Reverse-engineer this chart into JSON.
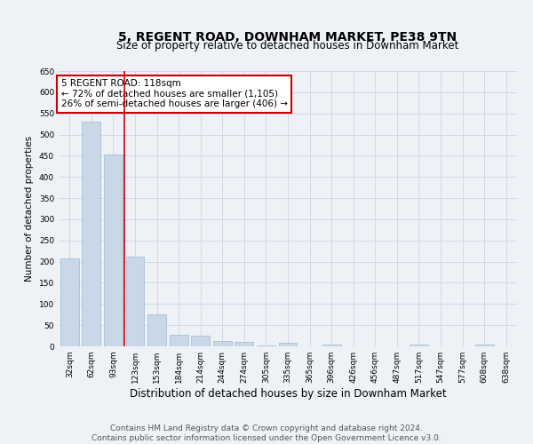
{
  "title": "5, REGENT ROAD, DOWNHAM MARKET, PE38 9TN",
  "subtitle": "Size of property relative to detached houses in Downham Market",
  "xlabel": "Distribution of detached houses by size in Downham Market",
  "ylabel": "Number of detached properties",
  "categories": [
    "32sqm",
    "62sqm",
    "93sqm",
    "123sqm",
    "153sqm",
    "184sqm",
    "214sqm",
    "244sqm",
    "274sqm",
    "305sqm",
    "335sqm",
    "365sqm",
    "396sqm",
    "426sqm",
    "456sqm",
    "487sqm",
    "517sqm",
    "547sqm",
    "577sqm",
    "608sqm",
    "638sqm"
  ],
  "values": [
    207,
    530,
    452,
    212,
    75,
    27,
    26,
    13,
    10,
    3,
    8,
    0,
    5,
    0,
    0,
    0,
    5,
    0,
    0,
    5,
    0
  ],
  "bar_color": "#c8d8e8",
  "bar_edge_color": "#a0b8d0",
  "grid_color": "#d0d8e8",
  "background_color": "#eef2f7",
  "annotation_box_text": "5 REGENT ROAD: 118sqm\n← 72% of detached houses are smaller (1,105)\n26% of semi-detached houses are larger (406) →",
  "annotation_box_color": "#ffffff",
  "annotation_box_edge_color": "#cc0000",
  "red_line_x": 2.5,
  "ylim": [
    0,
    650
  ],
  "yticks": [
    0,
    50,
    100,
    150,
    200,
    250,
    300,
    350,
    400,
    450,
    500,
    550,
    600,
    650
  ],
  "footer_line1": "Contains HM Land Registry data © Crown copyright and database right 2024.",
  "footer_line2": "Contains public sector information licensed under the Open Government Licence v3.0.",
  "title_fontsize": 10,
  "subtitle_fontsize": 8.5,
  "xlabel_fontsize": 8.5,
  "ylabel_fontsize": 7.5,
  "tick_fontsize": 6.5,
  "annotation_fontsize": 7.5,
  "footer_fontsize": 6.5
}
